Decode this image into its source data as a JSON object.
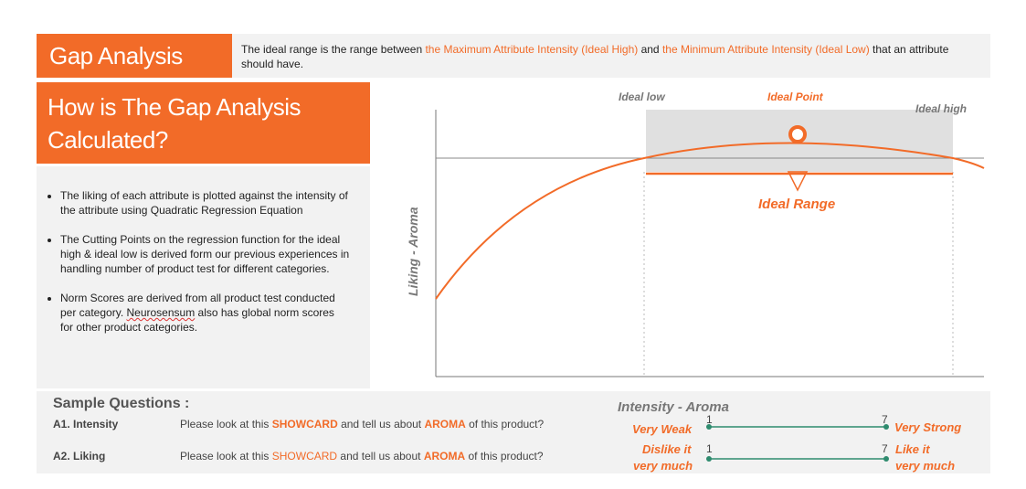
{
  "header": {
    "title": "Gap Analysis",
    "definition": {
      "part1": "The ideal range is the range between ",
      "high": "the Maximum Attribute Intensity (Ideal High)",
      "part2": " and ",
      "low": "the Minimum Attribute Intensity (Ideal Low)",
      "part3": " that an attribute should have."
    }
  },
  "how": {
    "title": "How is The Gap Analysis Calculated?",
    "bullets": [
      {
        "text": "The liking of each attribute is plotted against the intensity of the attribute using Quadratic Regression Equation"
      },
      {
        "text": "The Cutting Points on the regression function for the ideal high & ideal low is derived  form our previous experiences in handling number of product test for different categories."
      },
      {
        "pre": "Norm Scores are derived from all product test conducted per category. ",
        "brand": "Neurosensum",
        "post": " also has global norm scores for other product categories."
      }
    ]
  },
  "diagram": {
    "ideal_low_label": "Ideal low",
    "ideal_point_label": "Ideal Point",
    "ideal_high_label": "Ideal high",
    "ideal_range_label": "Ideal Range",
    "ylabel": "Liking - Aroma",
    "colors": {
      "curve": "#f26b28",
      "band": "#e0e0e0",
      "axis": "#777777"
    }
  },
  "samples": {
    "title": "Sample Questions :",
    "q1": {
      "label": "A1. Intensity",
      "pre": "Please look at this ",
      "showcard": "SHOWCARD",
      "mid": " and tell us about ",
      "aroma": "AROMA",
      "post": " of this product?"
    },
    "q2": {
      "label": "A2. Liking",
      "pre": "Please look at this ",
      "showcard": "SHOWCARD",
      "mid": " and tell us about ",
      "aroma": "AROMA",
      "post": " of this product?"
    },
    "scale_title": "Intensity - Aroma",
    "scale1": {
      "left": "Very Weak",
      "right": "Very Strong",
      "min": "1",
      "max": "7"
    },
    "scale2": {
      "left1": "Dislike it",
      "left2": "very much",
      "right1": "Like it",
      "right2": "very much",
      "min": "1",
      "max": "7"
    },
    "scale_color": "#2e8b6e"
  }
}
